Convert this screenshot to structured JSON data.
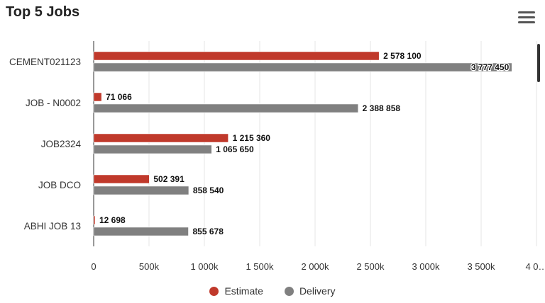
{
  "header": {
    "title": "Top 5 Jobs"
  },
  "icons": {
    "menu": "hamburger-menu-icon"
  },
  "chart_data": {
    "type": "bar",
    "orientation": "horizontal",
    "title": "Top 5 Jobs",
    "categories": [
      "CEMENT021123",
      "JOB - N0002",
      "JOB2324",
      "JOB DCO",
      "ABHI JOB 13"
    ],
    "series": [
      {
        "name": "Estimate",
        "color": "#c0392b",
        "values": [
          2578100,
          71066,
          1215360,
          502391,
          12698
        ]
      },
      {
        "name": "Delivery",
        "color": "#808080",
        "values": [
          3777450,
          2388858,
          1065650,
          858540,
          855678
        ]
      }
    ],
    "data_labels": {
      "Estimate": [
        "2 578 100",
        "71 066",
        "1 215 360",
        "502 391",
        "12 698"
      ],
      "Delivery": [
        "3 777 450",
        "2 388 858",
        "1 065 650",
        "858 540",
        "855 678"
      ]
    },
    "xlim": [
      0,
      4000000
    ],
    "xticks": [
      0,
      500000,
      1000000,
      1500000,
      2000000,
      2500000,
      3000000,
      3500000,
      4000000
    ],
    "xtick_labels": [
      "0",
      "500k",
      "1 000k",
      "1 500k",
      "2 000k",
      "2 500k",
      "3 000k",
      "3 500k",
      "4 0…"
    ],
    "grid": true,
    "legend": "bottom-center"
  }
}
